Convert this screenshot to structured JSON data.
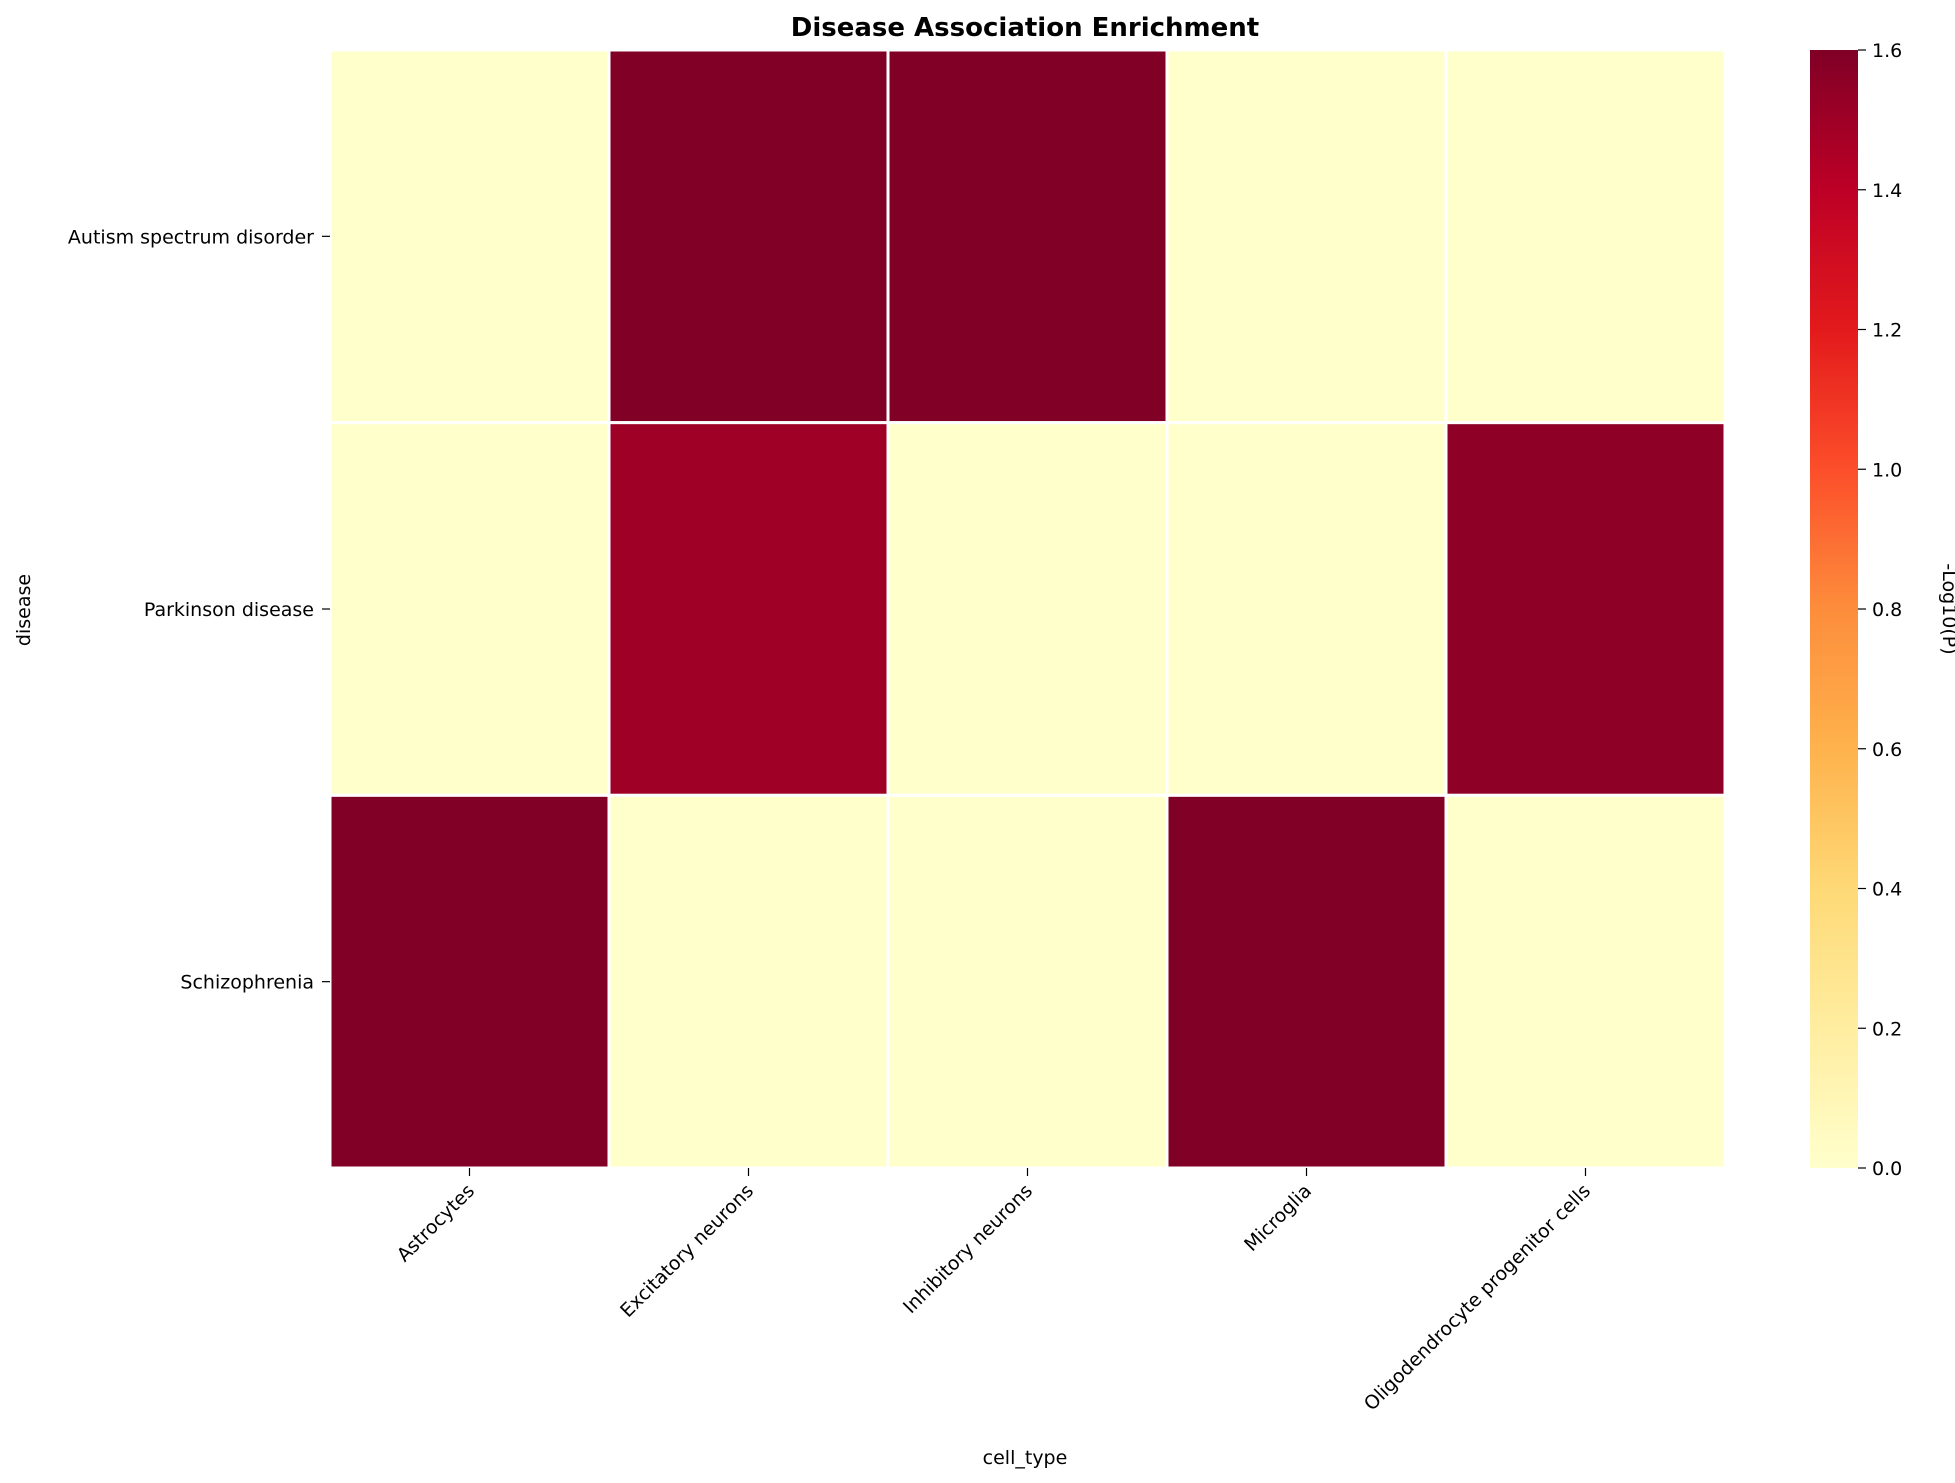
{
  "chart_data": {
    "type": "heatmap",
    "title": "Disease Association Enrichment",
    "xlabel": "cell_type",
    "ylabel": "disease",
    "x_categories": [
      "Astrocytes",
      "Excitatory neurons",
      "Inhibitory neurons",
      "Microglia",
      "Oligodendrocyte progenitor cells"
    ],
    "y_categories": [
      "Autism spectrum disorder",
      "Parkinson disease",
      "Schizophrenia"
    ],
    "values": [
      [
        0.0,
        1.6,
        1.6,
        0.0,
        0.0
      ],
      [
        0.0,
        1.5,
        0.0,
        0.0,
        1.55
      ],
      [
        1.6,
        0.0,
        0.0,
        1.6,
        0.0
      ]
    ],
    "colorbar": {
      "label": "-Log10(P)",
      "range": [
        0,
        1.6
      ],
      "ticks": [
        "0.0",
        "0.2",
        "0.4",
        "0.6",
        "0.8",
        "1.0",
        "1.2",
        "1.4",
        "1.6"
      ],
      "colormap": "YlOrRd",
      "colormap_stops": [
        "#ffffcc",
        "#ffeda0",
        "#fed976",
        "#feb24c",
        "#fd8d3c",
        "#fc4e2a",
        "#e31a1c",
        "#bd0026",
        "#800026"
      ]
    },
    "gridlines": "white"
  }
}
